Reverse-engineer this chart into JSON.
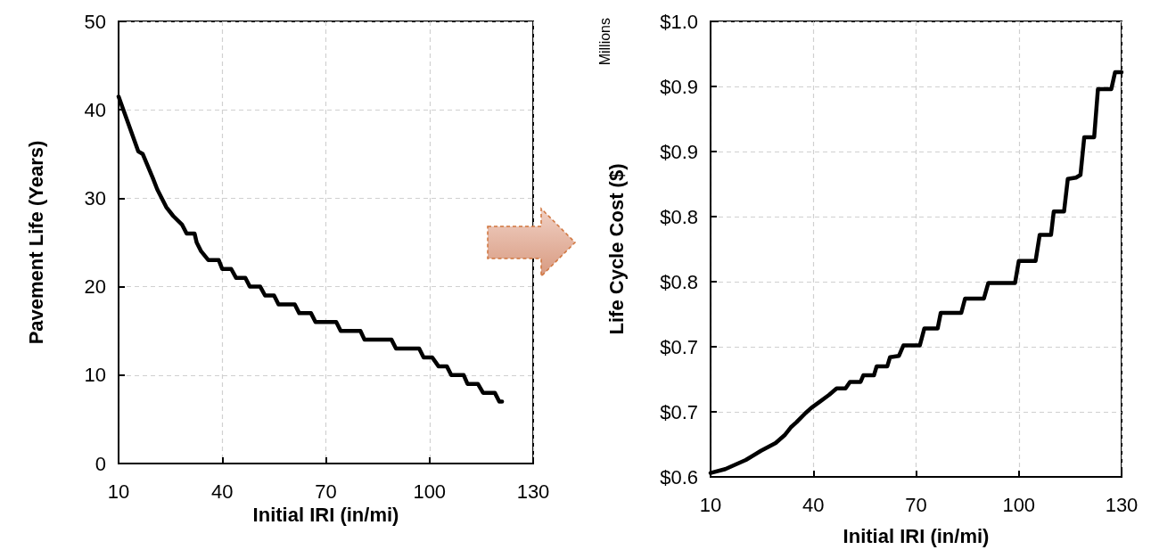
{
  "chart_data": [
    {
      "type": "line",
      "xlabel": "Initial IRI (in/mi)",
      "ylabel": "Pavement Life (Years)",
      "xlim": [
        10,
        130
      ],
      "xticks": [
        10,
        40,
        70,
        100,
        130
      ],
      "ylim": [
        0,
        50
      ],
      "yticks": [
        0,
        10,
        20,
        30,
        40,
        50
      ],
      "grid": true,
      "series": [
        {
          "color": "#000000",
          "x": [
            10,
            15.7,
            17,
            19.9,
            21.2,
            23.8,
            25.8,
            28.4,
            29.7,
            32,
            32.6,
            33.9,
            36,
            39,
            40,
            42.6,
            44,
            46.7,
            48,
            51,
            52.4,
            55,
            56.3,
            61,
            62.3,
            65.7,
            67,
            73,
            74.3,
            80,
            81.2,
            89,
            90.3,
            97,
            98.3,
            100.8,
            102.6,
            105,
            106.3,
            109.9,
            111,
            114,
            115.5,
            118.9,
            120.2,
            121
          ],
          "values": [
            41.5,
            35.3,
            35,
            32.3,
            31,
            29,
            28,
            27,
            26,
            26,
            25,
            24,
            23,
            23,
            22,
            22,
            21,
            21,
            20,
            20,
            19,
            19,
            18,
            18,
            17,
            17,
            16,
            16,
            15,
            15,
            14,
            14,
            13,
            13,
            12,
            12,
            11,
            11,
            10,
            10,
            9,
            9,
            8,
            8,
            7,
            7
          ]
        }
      ]
    },
    {
      "type": "line",
      "xlabel": "Initial IRI (in/mi)",
      "ylabel": "Life Cycle Cost ($)",
      "annotations": [
        "Millions"
      ],
      "xlim": [
        10,
        130
      ],
      "xticks": [
        10,
        40,
        70,
        100,
        130
      ],
      "ylim": [
        0.6,
        0.95
      ],
      "yticks": [
        {
          "value": 0.6,
          "label": "$0.6"
        },
        {
          "value": 0.65,
          "label": "$0.7"
        },
        {
          "value": 0.7,
          "label": "$0.7"
        },
        {
          "value": 0.75,
          "label": "$0.8"
        },
        {
          "value": 0.8,
          "label": "$0.8"
        },
        {
          "value": 0.85,
          "label": "$0.9"
        },
        {
          "value": 0.9,
          "label": "$0.9"
        },
        {
          "value": 0.95,
          "label": "$1.0"
        }
      ],
      "grid": true,
      "series": [
        {
          "color": "#000000",
          "x": [
            10,
            14.3,
            20.3,
            24.7,
            29,
            31.6,
            33.4,
            35.1,
            37.7,
            39.4,
            42,
            44.6,
            46.8,
            49.4,
            50.7,
            53.8,
            54.6,
            57.7,
            58.5,
            61.6,
            62.4,
            65,
            66.3,
            71.1,
            72.4,
            76.3,
            77.2,
            83.2,
            84.3,
            89.8,
            91.1,
            98.9,
            100,
            104.9,
            106.1,
            109.4,
            110.2,
            113.2,
            114.3,
            116.7,
            118,
            119.1,
            122,
            123.1,
            127,
            128.1,
            130
          ],
          "values": [
            0.603,
            0.606,
            0.613,
            0.62,
            0.626,
            0.632,
            0.638,
            0.642,
            0.649,
            0.653,
            0.658,
            0.663,
            0.668,
            0.668,
            0.673,
            0.673,
            0.678,
            0.678,
            0.685,
            0.685,
            0.692,
            0.693,
            0.701,
            0.701,
            0.714,
            0.714,
            0.726,
            0.726,
            0.737,
            0.737,
            0.749,
            0.749,
            0.766,
            0.766,
            0.786,
            0.786,
            0.804,
            0.804,
            0.829,
            0.83,
            0.832,
            0.861,
            0.861,
            0.898,
            0.898,
            0.911,
            0.911
          ]
        }
      ]
    }
  ]
}
